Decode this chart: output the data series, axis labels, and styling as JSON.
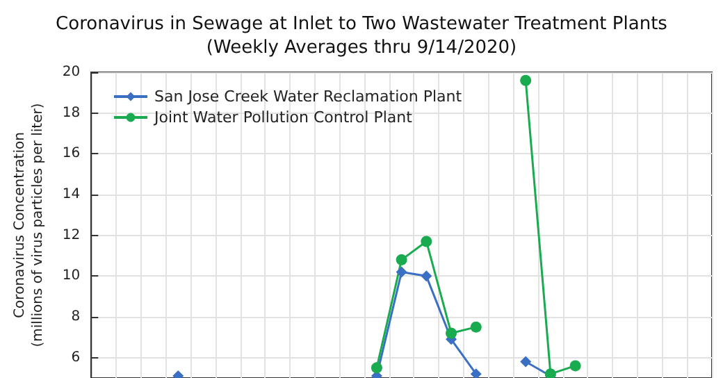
{
  "chart_data": {
    "type": "line",
    "title": "Coronavirus in Sewage at Inlet to Two Wastewater Treatment Plants",
    "subtitle": "(Weekly Averages thru 9/14/2020)",
    "ylabel": "Coronavirus Concentration\n(millions of virus particles per liter)",
    "categories": [
      null,
      null,
      null,
      null,
      null,
      null,
      null,
      null,
      null,
      null,
      null,
      null,
      null,
      null,
      null,
      null,
      null,
      null,
      null,
      null,
      null,
      null,
      null,
      null,
      null
    ],
    "ylim": [
      5,
      20
    ],
    "yticks": [
      6,
      8,
      10,
      12,
      14,
      16,
      18,
      20
    ],
    "grid": true,
    "legend": "top left",
    "tick_labels": "y",
    "line_style": "solid",
    "series": [
      {
        "name": "San Jose Creek Water Reclamation Plant",
        "color": "#3a6fc4",
        "marker": "diamond",
        "values": [
          null,
          null,
          null,
          5.1,
          null,
          null,
          null,
          null,
          null,
          null,
          null,
          5.1,
          10.2,
          10.0,
          6.9,
          5.2,
          null,
          5.8,
          5.1,
          null,
          null,
          null,
          null,
          null,
          null
        ]
      },
      {
        "name": "Joint Water Pollution Control Plant",
        "color": "#1aab50",
        "marker": "circle",
        "values": [
          null,
          null,
          null,
          null,
          null,
          null,
          null,
          null,
          null,
          null,
          null,
          5.5,
          10.8,
          11.7,
          7.2,
          7.5,
          null,
          19.6,
          5.2,
          5.6,
          null,
          null,
          null,
          null,
          null
        ]
      }
    ]
  }
}
